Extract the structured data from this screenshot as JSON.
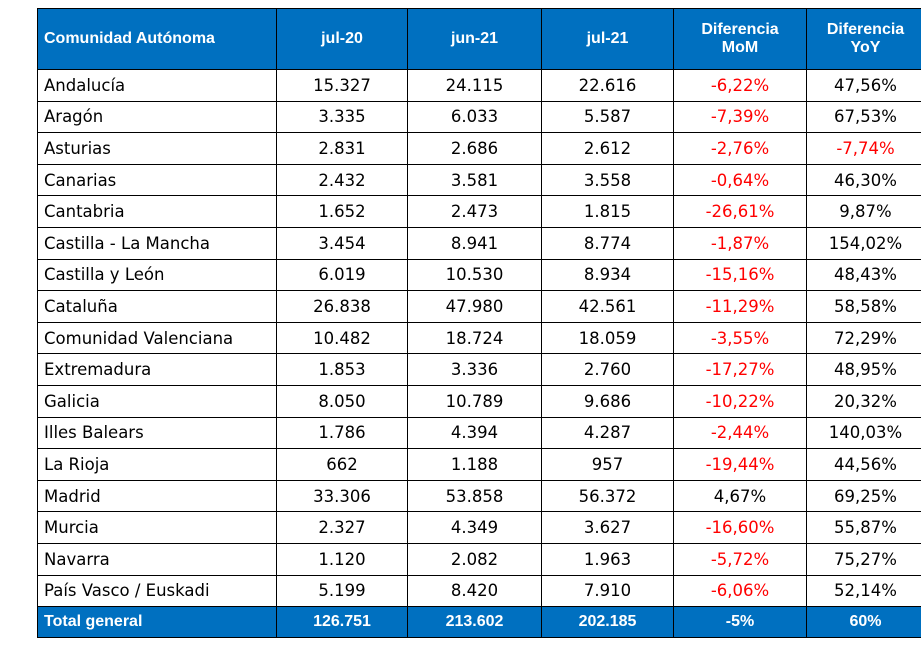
{
  "table": {
    "headers": [
      "Comunidad Autónoma",
      "jul-20",
      "jun-21",
      "jul-21",
      "Diferencia MoM",
      "Diferencia YoY"
    ],
    "negative_color": "#ff0000",
    "header_bg": "#0070c0",
    "rows": [
      {
        "name": "Andalucía",
        "jul20": "15.327",
        "jun21": "24.115",
        "jul21": "22.616",
        "mom": "-6,22%",
        "yoy": "47,56%",
        "mom_neg": true,
        "yoy_neg": false
      },
      {
        "name": "Aragón",
        "jul20": "3.335",
        "jun21": "6.033",
        "jul21": "5.587",
        "mom": "-7,39%",
        "yoy": "67,53%",
        "mom_neg": true,
        "yoy_neg": false
      },
      {
        "name": "Asturias",
        "jul20": "2.831",
        "jun21": "2.686",
        "jul21": "2.612",
        "mom": "-2,76%",
        "yoy": "-7,74%",
        "mom_neg": true,
        "yoy_neg": true
      },
      {
        "name": "Canarias",
        "jul20": "2.432",
        "jun21": "3.581",
        "jul21": "3.558",
        "mom": "-0,64%",
        "yoy": "46,30%",
        "mom_neg": true,
        "yoy_neg": false
      },
      {
        "name": "Cantabria",
        "jul20": "1.652",
        "jun21": "2.473",
        "jul21": "1.815",
        "mom": "-26,61%",
        "yoy": "9,87%",
        "mom_neg": true,
        "yoy_neg": false
      },
      {
        "name": "Castilla - La Mancha",
        "jul20": "3.454",
        "jun21": "8.941",
        "jul21": "8.774",
        "mom": "-1,87%",
        "yoy": "154,02%",
        "mom_neg": true,
        "yoy_neg": false
      },
      {
        "name": "Castilla y León",
        "jul20": "6.019",
        "jun21": "10.530",
        "jul21": "8.934",
        "mom": "-15,16%",
        "yoy": "48,43%",
        "mom_neg": true,
        "yoy_neg": false
      },
      {
        "name": "Cataluña",
        "jul20": "26.838",
        "jun21": "47.980",
        "jul21": "42.561",
        "mom": "-11,29%",
        "yoy": "58,58%",
        "mom_neg": true,
        "yoy_neg": false
      },
      {
        "name": "Comunidad Valenciana",
        "jul20": "10.482",
        "jun21": "18.724",
        "jul21": "18.059",
        "mom": "-3,55%",
        "yoy": "72,29%",
        "mom_neg": true,
        "yoy_neg": false
      },
      {
        "name": "Extremadura",
        "jul20": "1.853",
        "jun21": "3.336",
        "jul21": "2.760",
        "mom": "-17,27%",
        "yoy": "48,95%",
        "mom_neg": true,
        "yoy_neg": false
      },
      {
        "name": "Galicia",
        "jul20": "8.050",
        "jun21": "10.789",
        "jul21": "9.686",
        "mom": "-10,22%",
        "yoy": "20,32%",
        "mom_neg": true,
        "yoy_neg": false
      },
      {
        "name": "Illes Balears",
        "jul20": "1.786",
        "jun21": "4.394",
        "jul21": "4.287",
        "mom": "-2,44%",
        "yoy": "140,03%",
        "mom_neg": true,
        "yoy_neg": false
      },
      {
        "name": "La Rioja",
        "jul20": "662",
        "jun21": "1.188",
        "jul21": "957",
        "mom": "-19,44%",
        "yoy": "44,56%",
        "mom_neg": true,
        "yoy_neg": false
      },
      {
        "name": "Madrid",
        "jul20": "33.306",
        "jun21": "53.858",
        "jul21": "56.372",
        "mom": "4,67%",
        "yoy": "69,25%",
        "mom_neg": false,
        "yoy_neg": false
      },
      {
        "name": "Murcia",
        "jul20": "2.327",
        "jun21": "4.349",
        "jul21": "3.627",
        "mom": "-16,60%",
        "yoy": "55,87%",
        "mom_neg": true,
        "yoy_neg": false
      },
      {
        "name": "Navarra",
        "jul20": "1.120",
        "jun21": "2.082",
        "jul21": "1.963",
        "mom": "-5,72%",
        "yoy": "75,27%",
        "mom_neg": true,
        "yoy_neg": false
      },
      {
        "name": "País Vasco / Euskadi",
        "jul20": "5.199",
        "jun21": "8.420",
        "jul21": "7.910",
        "mom": "-6,06%",
        "yoy": "52,14%",
        "mom_neg": true,
        "yoy_neg": false
      }
    ],
    "total": {
      "name": "Total general",
      "jul20": "126.751",
      "jun21": "213.602",
      "jul21": "202.185",
      "mom": "-5%",
      "yoy": "60%"
    }
  }
}
